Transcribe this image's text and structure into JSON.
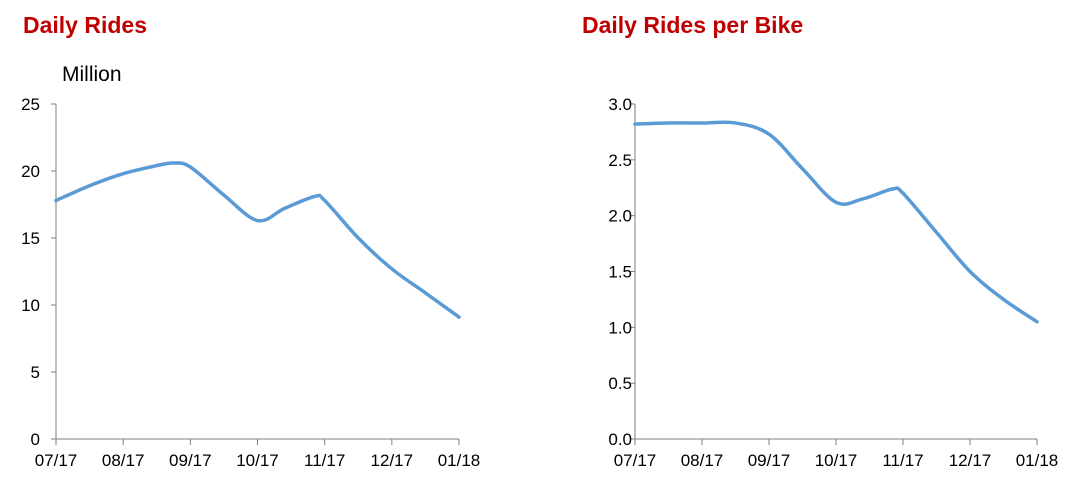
{
  "chart_data": [
    {
      "type": "line",
      "title": "Daily Rides",
      "ylabel": "Million",
      "x": [
        "07/17",
        "08/17",
        "09/17",
        "10/17",
        "11/17",
        "12/17",
        "01/18"
      ],
      "ylim": [
        0,
        25
      ],
      "yticks": [
        "0",
        "5",
        "10",
        "15",
        "20",
        "25"
      ],
      "color": "#5b9bd5",
      "series": [
        {
          "values": [
            {
              "x": "07/17",
              "y": 17.8
            },
            {
              "x": "07/17+0.5",
              "y": 18.9
            },
            {
              "x": "08/17",
              "y": 19.8
            },
            {
              "x": "08/17+0.5",
              "y": 20.4
            },
            {
              "x": "08/17+0.75",
              "y": 20.6
            },
            {
              "x": "09/17",
              "y": 20.3
            },
            {
              "x": "09/17+0.5",
              "y": 18.2
            },
            {
              "x": "10/17",
              "y": 16.3
            },
            {
              "x": "10/17+0.4",
              "y": 17.2
            },
            {
              "x": "10/17+0.85",
              "y": 18.1
            },
            {
              "x": "11/17",
              "y": 17.8
            },
            {
              "x": "11/17+0.5",
              "y": 15.0
            },
            {
              "x": "12/17",
              "y": 12.7
            },
            {
              "x": "12/17+0.5",
              "y": 10.9
            },
            {
              "x": "01/18",
              "y": 9.1
            }
          ]
        }
      ]
    },
    {
      "type": "line",
      "title": "Daily Rides per Bike",
      "x": [
        "07/17",
        "08/17",
        "09/17",
        "10/17",
        "11/17",
        "12/17",
        "01/18"
      ],
      "ylim": [
        0,
        3.0
      ],
      "yticks": [
        "0.0",
        "0.5",
        "1.0",
        "1.5",
        "2.0",
        "2.5",
        "3.0"
      ],
      "color": "#5b9bd5",
      "series": [
        {
          "values": [
            {
              "x": "07/17",
              "y": 2.82
            },
            {
              "x": "07/17+0.5",
              "y": 2.83
            },
            {
              "x": "08/17",
              "y": 2.83
            },
            {
              "x": "08/17+0.5",
              "y": 2.83
            },
            {
              "x": "09/17",
              "y": 2.73
            },
            {
              "x": "09/17+0.5",
              "y": 2.42
            },
            {
              "x": "10/17",
              "y": 2.12
            },
            {
              "x": "10/17+0.4",
              "y": 2.15
            },
            {
              "x": "10/17+0.85",
              "y": 2.24
            },
            {
              "x": "11/17",
              "y": 2.2
            },
            {
              "x": "11/17+0.5",
              "y": 1.85
            },
            {
              "x": "12/17",
              "y": 1.5
            },
            {
              "x": "12/17+0.5",
              "y": 1.25
            },
            {
              "x": "01/18",
              "y": 1.05
            }
          ]
        }
      ]
    }
  ]
}
